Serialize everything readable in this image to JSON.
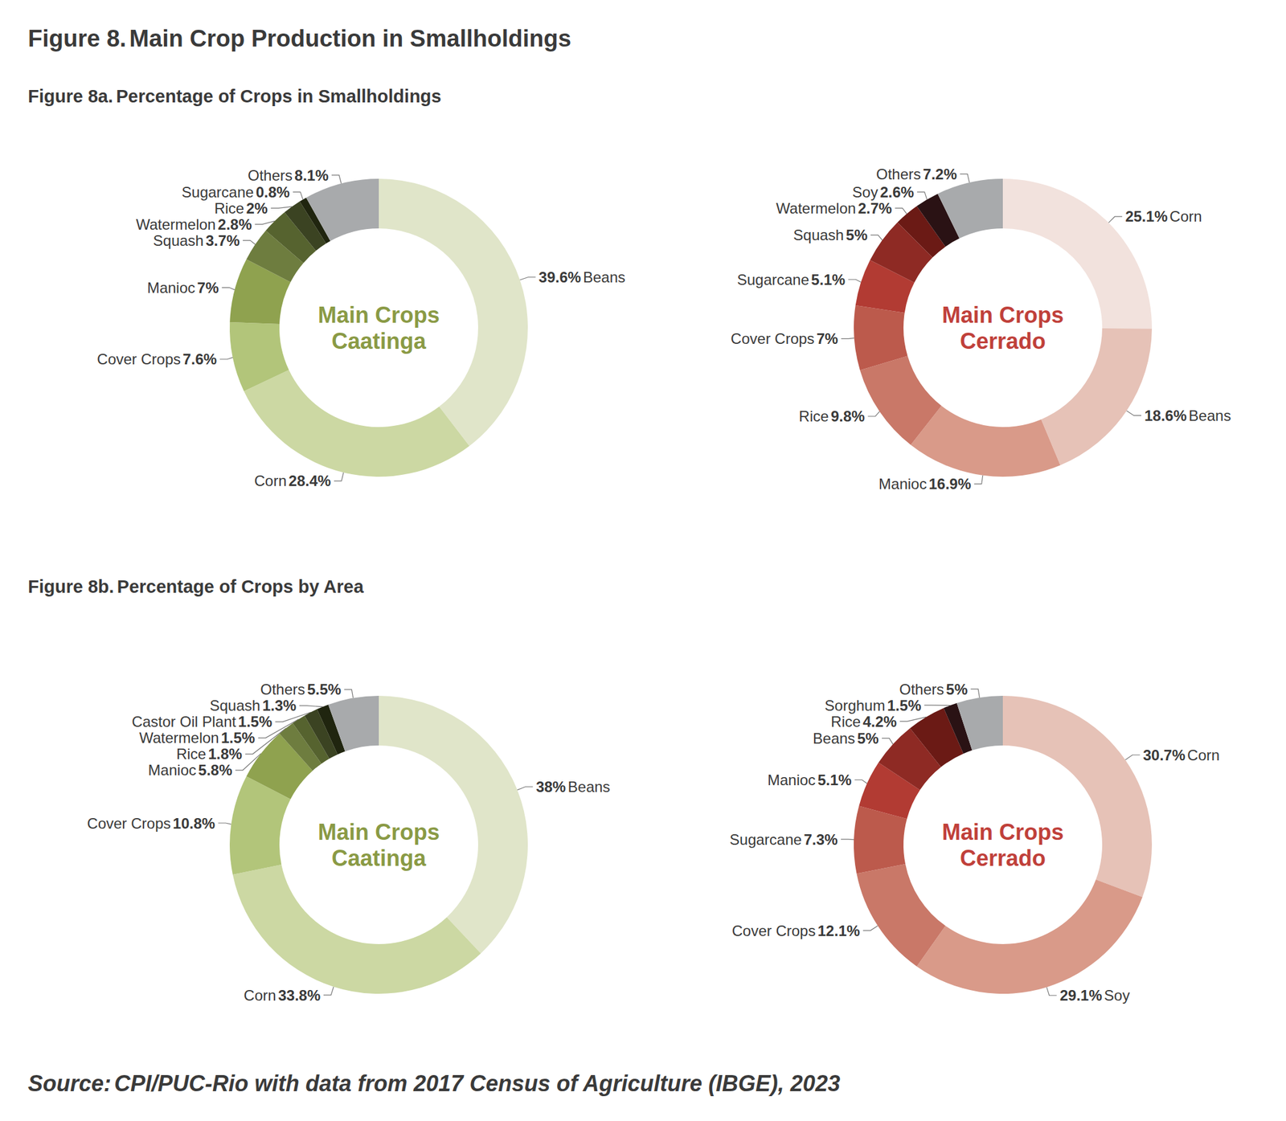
{
  "figure": {
    "label": "Figure 8.",
    "title": "Main Crop Production in Smallholdings"
  },
  "panels": [
    {
      "label": "Figure 8a.",
      "title": "Percentage of Crops in Smallholdings"
    },
    {
      "label": "Figure 8b.",
      "title": "Percentage of Crops by Area"
    }
  ],
  "source": {
    "label": "Source:",
    "text": "CPI/PUC-Rio with data from 2017 Census of Agriculture (IBGE), 2023"
  },
  "chart_data": [
    {
      "type": "pie",
      "title": "Main Crops\nCaatinga",
      "categories": [
        "Beans",
        "Corn",
        "Cover Crops",
        "Manioc",
        "Squash",
        "Watermelon",
        "Rice",
        "Sugarcane",
        "Others"
      ],
      "values": [
        39.6,
        28.4,
        7.6,
        7,
        3.7,
        2.8,
        2,
        0.8,
        8.1
      ],
      "value_labels": [
        "39.6%",
        "28.4%",
        "7.6%",
        "7%",
        "3.7%",
        "2.8%",
        "2%",
        "0.8%",
        "8.1%"
      ],
      "colors": [
        "#e0e5c9",
        "#ccd8a3",
        "#b2c57a",
        "#8fa24f",
        "#6e7d3f",
        "#56632f",
        "#3b4322",
        "#20250f",
        "#a8aaac"
      ],
      "data_labels": true
    },
    {
      "type": "pie",
      "title": "Main Crops\nCerrado",
      "categories": [
        "Corn",
        "Beans",
        "Manioc",
        "Rice",
        "Cover Crops",
        "Sugarcane",
        "Squash",
        "Watermelon",
        "Soy",
        "Others"
      ],
      "values": [
        25.1,
        18.6,
        16.9,
        9.8,
        7,
        5.1,
        5,
        2.7,
        2.6,
        7.2
      ],
      "value_labels": [
        "25.1%",
        "18.6%",
        "16.9%",
        "9.8%",
        "7%",
        "5.1%",
        "5%",
        "2.7%",
        "2.6%",
        "7.2%"
      ],
      "colors": [
        "#f2e2dd",
        "#e6c2b7",
        "#d99a89",
        "#c97868",
        "#bc5a4c",
        "#b23b33",
        "#8e2a24",
        "#6b1a15",
        "#2a1214",
        "#a8aaac"
      ],
      "data_labels": true
    },
    {
      "type": "pie",
      "title": "Main Crops\nCaatinga",
      "categories": [
        "Beans",
        "Corn",
        "Cover Crops",
        "Manioc",
        "Rice",
        "Watermelon",
        "Castor Oil Plant",
        "Squash",
        "Others"
      ],
      "values": [
        38,
        33.8,
        10.8,
        5.8,
        1.8,
        1.5,
        1.5,
        1.3,
        5.5
      ],
      "value_labels": [
        "38%",
        "33.8%",
        "10.8%",
        "5.8%",
        "1.8%",
        "1.5%",
        "1.5%",
        "1.3%",
        "5.5%"
      ],
      "colors": [
        "#e0e5c9",
        "#ccd8a3",
        "#b2c57a",
        "#8fa24f",
        "#6e7d3f",
        "#56632f",
        "#3b4322",
        "#20250f",
        "#a8aaac"
      ],
      "data_labels": true
    },
    {
      "type": "pie",
      "title": "Main Crops\nCerrado",
      "categories": [
        "Corn",
        "Soy",
        "Cover Crops",
        "Sugarcane",
        "Manioc",
        "Beans",
        "Rice",
        "Sorghum",
        "Others"
      ],
      "values": [
        30.7,
        29.1,
        12.1,
        7.3,
        5.1,
        5,
        4.2,
        1.5,
        5
      ],
      "value_labels": [
        "30.7%",
        "29.1%",
        "12.1%",
        "7.3%",
        "5.1%",
        "5%",
        "4.2%",
        "1.5%",
        "5%"
      ],
      "colors": [
        "#e6c2b7",
        "#d99a89",
        "#c97868",
        "#bc5a4c",
        "#b23b33",
        "#8e2a24",
        "#6b1a15",
        "#2a1214",
        "#a8aaac"
      ],
      "data_labels": true
    }
  ]
}
